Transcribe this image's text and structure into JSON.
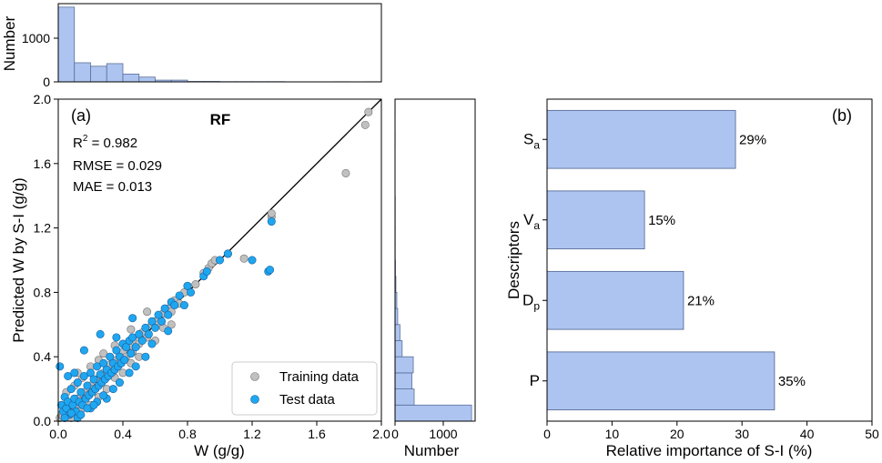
{
  "chart_data": [
    {
      "id": "a",
      "type": "scatter",
      "panel_label": "(a)",
      "title": "RF",
      "xlabel": "W (g/g)",
      "ylabel": "Predicted W by S-I (g/g)",
      "xlim": [
        0,
        2.0
      ],
      "ylim": [
        0,
        2.0
      ],
      "xticks": [
        "0.0",
        "0.4",
        "0.8",
        "1.2",
        "1.6",
        "2.0"
      ],
      "yticks": [
        "0.0",
        "0.4",
        "0.8",
        "1.2",
        "1.6",
        "2.0"
      ],
      "stats": {
        "r2_base": "R",
        "r2_sup": "2",
        "r2_value": " = 0.982",
        "rmse": "RMSE = 0.029",
        "mae": "MAE = 0.013"
      },
      "legend_position": "bottom-right",
      "series": [
        {
          "name": "Training data",
          "color": "#c0c0c0",
          "points": [
            [
              0.01,
              0.02
            ],
            [
              0.02,
              0.04
            ],
            [
              0.03,
              0.03
            ],
            [
              0.05,
              0.06
            ],
            [
              0.06,
              0.05
            ],
            [
              0.08,
              0.1
            ],
            [
              0.1,
              0.09
            ],
            [
              0.12,
              0.14
            ],
            [
              0.14,
              0.12
            ],
            [
              0.16,
              0.18
            ],
            [
              0.18,
              0.16
            ],
            [
              0.2,
              0.22
            ],
            [
              0.22,
              0.2
            ],
            [
              0.24,
              0.26
            ],
            [
              0.26,
              0.24
            ],
            [
              0.28,
              0.3
            ],
            [
              0.3,
              0.28
            ],
            [
              0.32,
              0.35
            ],
            [
              0.34,
              0.31
            ],
            [
              0.36,
              0.38
            ],
            [
              0.38,
              0.36
            ],
            [
              0.4,
              0.43
            ],
            [
              0.42,
              0.4
            ],
            [
              0.44,
              0.46
            ],
            [
              0.46,
              0.43
            ],
            [
              0.48,
              0.5
            ],
            [
              0.5,
              0.48
            ],
            [
              0.52,
              0.55
            ],
            [
              0.55,
              0.52
            ],
            [
              0.58,
              0.6
            ],
            [
              0.6,
              0.62
            ],
            [
              0.62,
              0.6
            ],
            [
              0.65,
              0.67
            ],
            [
              0.68,
              0.7
            ],
            [
              0.7,
              0.68
            ],
            [
              0.72,
              0.75
            ],
            [
              0.75,
              0.73
            ],
            [
              0.78,
              0.8
            ],
            [
              0.8,
              0.84
            ],
            [
              0.85,
              0.85
            ],
            [
              0.9,
              0.92
            ],
            [
              0.93,
              0.95
            ],
            [
              0.95,
              0.98
            ],
            [
              0.97,
              1.0
            ],
            [
              1.05,
              1.04
            ],
            [
              1.15,
              1.01
            ],
            [
              1.32,
              1.27
            ],
            [
              1.32,
              1.29
            ],
            [
              1.78,
              1.54
            ],
            [
              1.9,
              1.84
            ],
            [
              1.92,
              1.92
            ],
            [
              0.15,
              0.27
            ],
            [
              0.25,
              0.38
            ],
            [
              0.35,
              0.47
            ],
            [
              0.45,
              0.57
            ],
            [
              0.55,
              0.68
            ],
            [
              0.05,
              0.18
            ],
            [
              0.1,
              0.22
            ],
            [
              0.2,
              0.1
            ],
            [
              0.3,
              0.2
            ],
            [
              0.4,
              0.3
            ],
            [
              0.5,
              0.4
            ],
            [
              0.6,
              0.5
            ],
            [
              0.7,
              0.6
            ],
            [
              0.12,
              0.3
            ],
            [
              0.2,
              0.34
            ],
            [
              0.28,
              0.42
            ],
            [
              0.08,
              0.02
            ],
            [
              0.15,
              0.08
            ],
            [
              0.25,
              0.15
            ],
            [
              0.35,
              0.27
            ],
            [
              0.45,
              0.36
            ],
            [
              0.65,
              0.58
            ]
          ]
        },
        {
          "name": "Test data",
          "color": "#1ea7f0",
          "points": [
            [
              0.01,
              0.34
            ],
            [
              0.02,
              0.1
            ],
            [
              0.03,
              0.06
            ],
            [
              0.04,
              0.15
            ],
            [
              0.05,
              0.08
            ],
            [
              0.06,
              0.12
            ],
            [
              0.07,
              0.04
            ],
            [
              0.08,
              0.2
            ],
            [
              0.09,
              0.1
            ],
            [
              0.1,
              0.14
            ],
            [
              0.11,
              0.06
            ],
            [
              0.12,
              0.24
            ],
            [
              0.13,
              0.12
            ],
            [
              0.14,
              0.18
            ],
            [
              0.15,
              0.1
            ],
            [
              0.16,
              0.28
            ],
            [
              0.17,
              0.14
            ],
            [
              0.18,
              0.22
            ],
            [
              0.19,
              0.16
            ],
            [
              0.2,
              0.3
            ],
            [
              0.21,
              0.18
            ],
            [
              0.22,
              0.26
            ],
            [
              0.23,
              0.2
            ],
            [
              0.24,
              0.34
            ],
            [
              0.25,
              0.22
            ],
            [
              0.26,
              0.29
            ],
            [
              0.27,
              0.24
            ],
            [
              0.28,
              0.36
            ],
            [
              0.29,
              0.26
            ],
            [
              0.3,
              0.32
            ],
            [
              0.31,
              0.28
            ],
            [
              0.32,
              0.4
            ],
            [
              0.33,
              0.3
            ],
            [
              0.34,
              0.36
            ],
            [
              0.35,
              0.32
            ],
            [
              0.36,
              0.44
            ],
            [
              0.37,
              0.34
            ],
            [
              0.38,
              0.4
            ],
            [
              0.39,
              0.36
            ],
            [
              0.4,
              0.48
            ],
            [
              0.41,
              0.38
            ],
            [
              0.42,
              0.46
            ],
            [
              0.44,
              0.5
            ],
            [
              0.45,
              0.42
            ],
            [
              0.46,
              0.52
            ],
            [
              0.48,
              0.46
            ],
            [
              0.5,
              0.54
            ],
            [
              0.52,
              0.5
            ],
            [
              0.54,
              0.58
            ],
            [
              0.56,
              0.54
            ],
            [
              0.58,
              0.62
            ],
            [
              0.6,
              0.58
            ],
            [
              0.62,
              0.66
            ],
            [
              0.64,
              0.62
            ],
            [
              0.66,
              0.7
            ],
            [
              0.68,
              0.66
            ],
            [
              0.7,
              0.74
            ],
            [
              0.72,
              0.72
            ],
            [
              0.75,
              0.78
            ],
            [
              0.8,
              0.84
            ],
            [
              0.82,
              0.8
            ],
            [
              0.9,
              0.9
            ],
            [
              0.92,
              0.93
            ],
            [
              1.0,
              1.0
            ],
            [
              1.05,
              1.04
            ],
            [
              1.2,
              1.0
            ],
            [
              1.3,
              0.93
            ],
            [
              1.31,
              0.94
            ],
            [
              1.32,
              1.24
            ],
            [
              0.16,
              0.44
            ],
            [
              0.26,
              0.54
            ],
            [
              0.46,
              0.64
            ],
            [
              0.12,
              0.02
            ],
            [
              0.2,
              0.08
            ],
            [
              0.3,
              0.14
            ],
            [
              0.06,
              0.28
            ],
            [
              0.1,
              0.3
            ],
            [
              0.24,
              0.12
            ],
            [
              0.34,
              0.2
            ],
            [
              0.44,
              0.3
            ],
            [
              0.54,
              0.4
            ],
            [
              0.36,
              0.52
            ],
            [
              0.04,
              0.02
            ],
            [
              0.08,
              0.05
            ],
            [
              0.14,
              0.04
            ],
            [
              0.18,
              0.08
            ],
            [
              0.22,
              0.1
            ],
            [
              0.28,
              0.16
            ],
            [
              0.38,
              0.24
            ],
            [
              0.48,
              0.34
            ],
            [
              0.58,
              0.48
            ],
            [
              0.68,
              0.56
            ],
            [
              0.78,
              0.72
            ]
          ]
        }
      ]
    },
    {
      "id": "top-hist",
      "type": "bar",
      "ylabel": "Number",
      "yticks": [
        "0",
        "1000"
      ],
      "ylim": [
        0,
        1800
      ],
      "bin_edges": [
        0,
        0.1,
        0.2,
        0.3,
        0.4,
        0.5,
        0.6,
        0.7,
        0.8,
        0.9,
        1.0,
        1.1,
        1.2,
        1.3,
        1.4,
        1.5,
        1.6,
        1.7,
        1.8,
        1.9,
        2.0
      ],
      "counts": [
        1720,
        440,
        360,
        420,
        180,
        110,
        40,
        40,
        10,
        10,
        5,
        5,
        5,
        5,
        0,
        0,
        0,
        3,
        0,
        3
      ],
      "color": "#adc4f0"
    },
    {
      "id": "right-hist",
      "type": "bar",
      "xlabel": "Number",
      "xticks": [
        "0",
        "1000"
      ],
      "xlim": [
        0,
        1800
      ],
      "bin_edges": [
        0,
        0.1,
        0.2,
        0.3,
        0.4,
        0.5,
        0.6,
        0.7,
        0.8,
        0.9,
        1.0,
        1.1,
        1.2,
        1.3,
        1.4,
        1.5,
        1.6,
        1.7,
        1.8,
        1.9,
        2.0
      ],
      "counts": [
        1720,
        430,
        380,
        410,
        160,
        110,
        60,
        40,
        20,
        10,
        5,
        5,
        5,
        5,
        0,
        0,
        0,
        3,
        0,
        3
      ],
      "color": "#adc4f0"
    },
    {
      "id": "b",
      "type": "bar",
      "orientation": "horizontal",
      "panel_label": "(b)",
      "xlabel": "Relative importance of S-I (%)",
      "ylabel": "Descriptors",
      "xlim": [
        0,
        50
      ],
      "xticks": [
        "0",
        "10",
        "20",
        "30",
        "40",
        "50"
      ],
      "color": "#adc4f0",
      "categories": [
        {
          "base": "S",
          "sub": "a",
          "value": 29,
          "label": "29%"
        },
        {
          "base": "V",
          "sub": "a",
          "value": 15,
          "label": "15%"
        },
        {
          "base": "D",
          "sub": "p",
          "value": 21,
          "label": "21%"
        },
        {
          "base": "P",
          "sub": "",
          "value": 35,
          "label": "35%"
        }
      ]
    }
  ]
}
